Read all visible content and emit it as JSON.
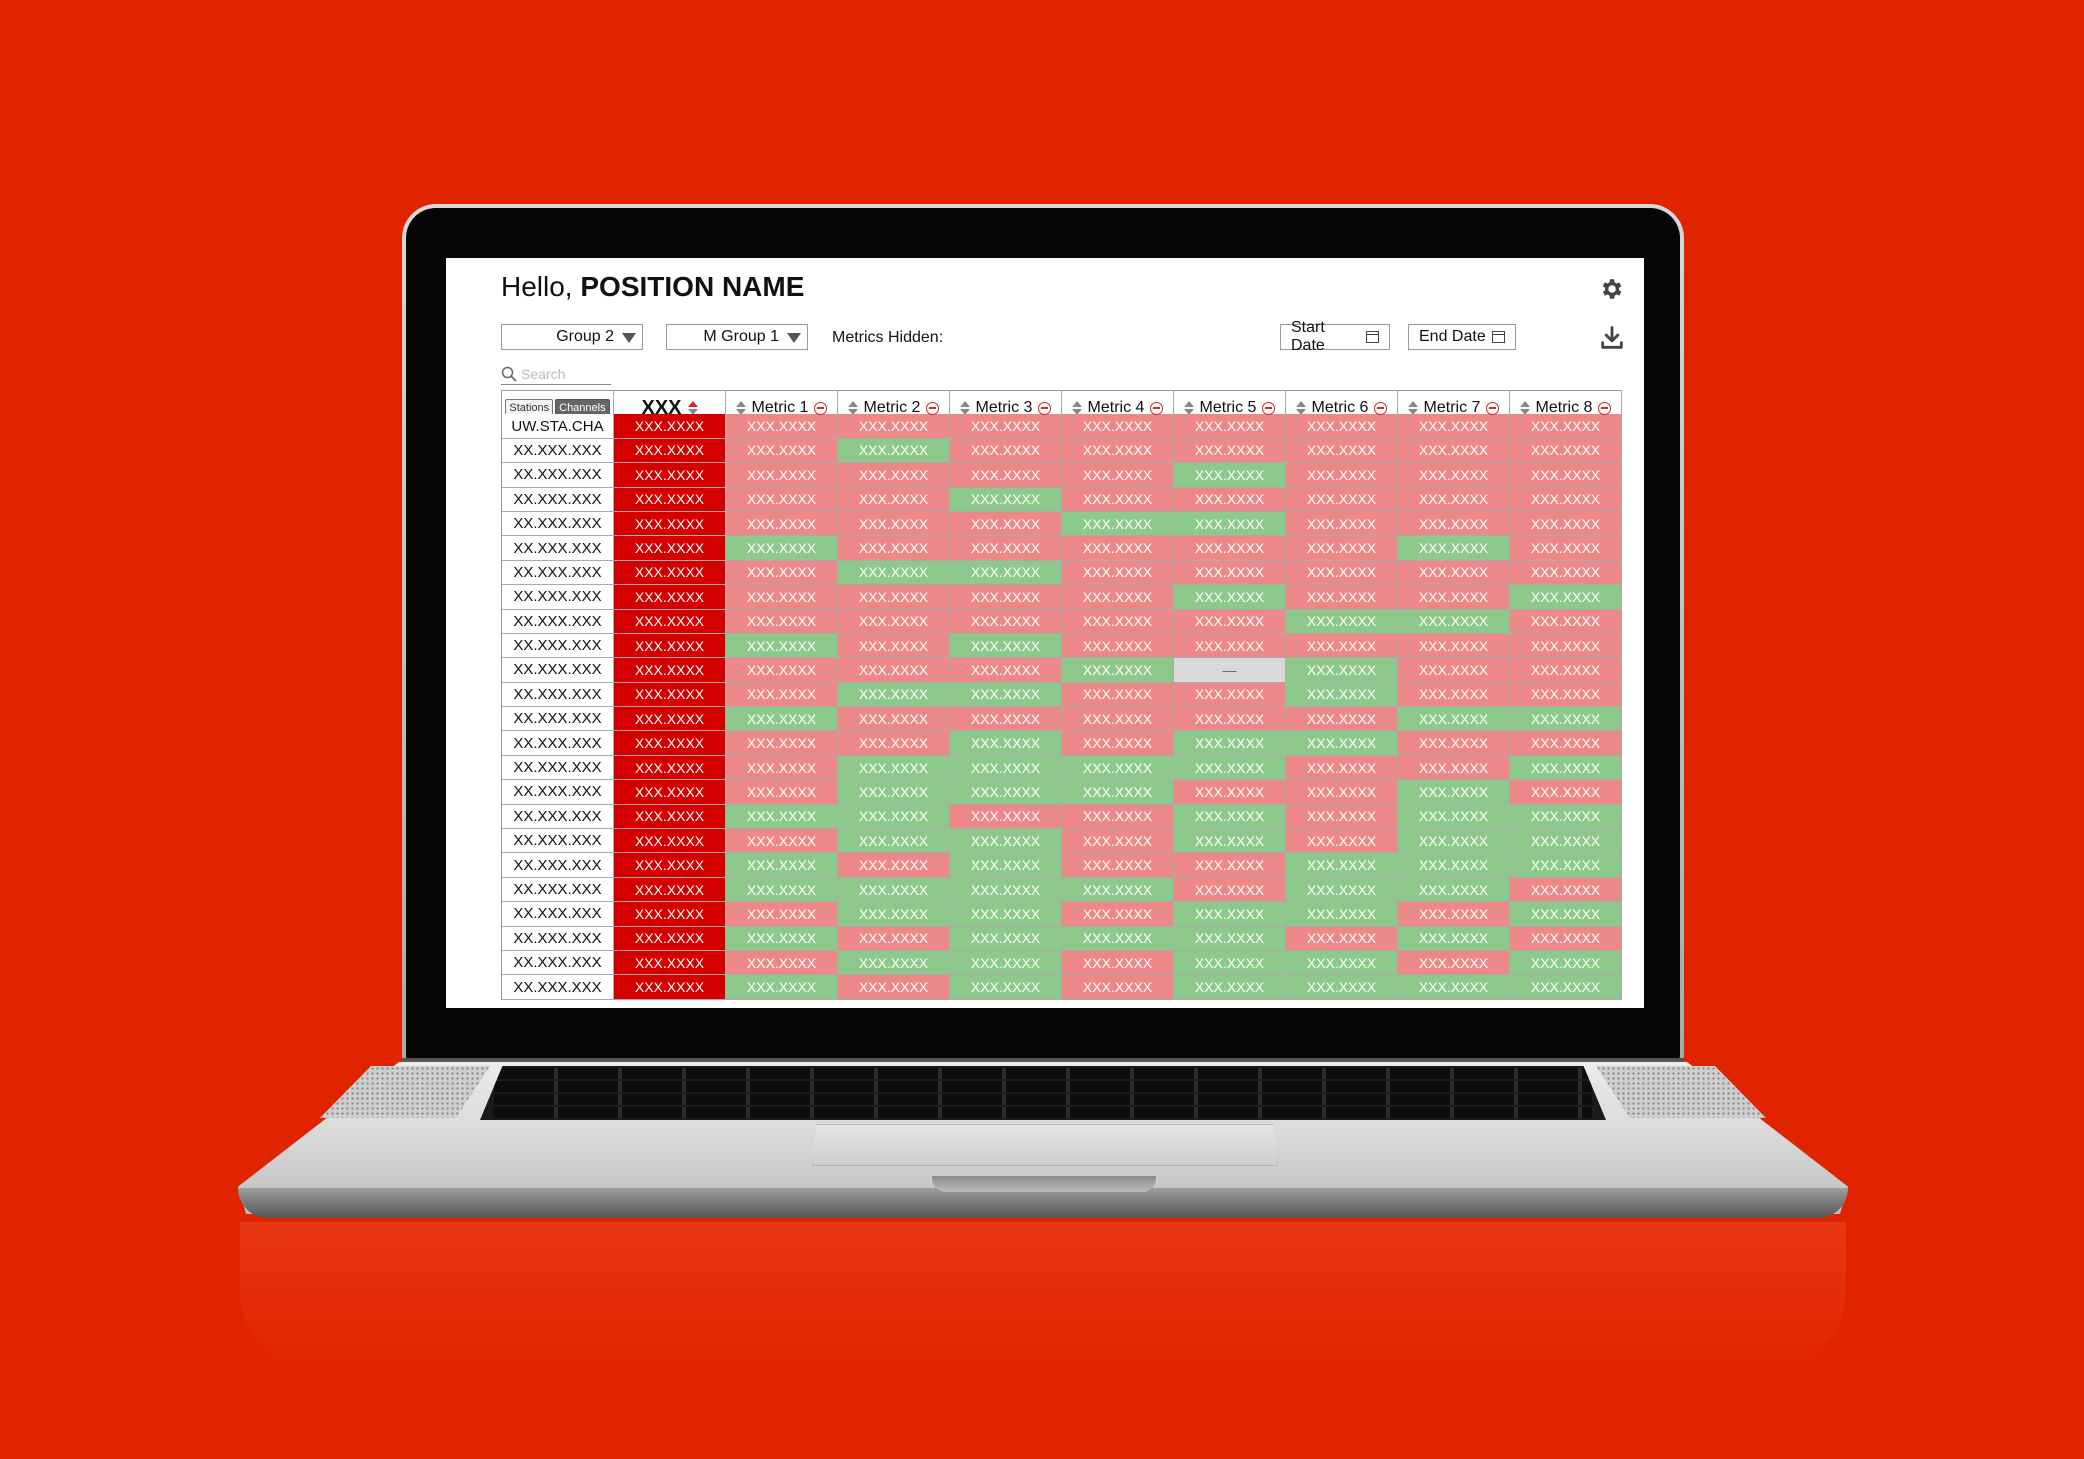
{
  "header": {
    "greeting_prefix": "Hello,",
    "position_name": "POSITION NAME"
  },
  "toolbar": {
    "group_dropdown": "Group 2",
    "metric_group_dropdown": "M Group 1",
    "metrics_hidden_label": "Metrics Hidden:",
    "start_date_label": "Start Date",
    "end_date_label": "End Date",
    "search_placeholder": "Search"
  },
  "table": {
    "toggle": [
      "Stations",
      "Channels"
    ],
    "primary_header": "XXX",
    "metric_headers": [
      "Metric 1",
      "Metric 2",
      "Metric 3",
      "Metric 4",
      "Metric 5",
      "Metric 6",
      "Metric 7",
      "Metric 8"
    ],
    "cell_text": "XXX.XXXX",
    "na_text": "—",
    "rows": [
      {
        "name": "UW.STA.CHA",
        "status": "bbbbbbbb"
      },
      {
        "name": "XX.XXX.XXX",
        "status": "bgbbbbbb"
      },
      {
        "name": "XX.XXX.XXX",
        "status": "bbbbgbbb"
      },
      {
        "name": "XX.XXX.XXX",
        "status": "bbgbbbbb"
      },
      {
        "name": "XX.XXX.XXX",
        "status": "bbbggbbb"
      },
      {
        "name": "XX.XXX.XXX",
        "status": "gbbbbbgb"
      },
      {
        "name": "XX.XXX.XXX",
        "status": "bggbbbbb"
      },
      {
        "name": "XX.XXX.XXX",
        "status": "bbbbgbbg"
      },
      {
        "name": "XX.XXX.XXX",
        "status": "bbbbbggb"
      },
      {
        "name": "XX.XXX.XXX",
        "status": "gbgbbbbb"
      },
      {
        "name": "XX.XXX.XXX",
        "status": "bbbgngbb"
      },
      {
        "name": "XX.XXX.XXX",
        "status": "bggbbgbb"
      },
      {
        "name": "XX.XXX.XXX",
        "status": "gbbbbbgg"
      },
      {
        "name": "XX.XXX.XXX",
        "status": "bbgbggbb"
      },
      {
        "name": "XX.XXX.XXX",
        "status": "bggggbbg"
      },
      {
        "name": "XX.XXX.XXX",
        "status": "bgggbbgb"
      },
      {
        "name": "XX.XXX.XXX",
        "status": "ggbbgbgg"
      },
      {
        "name": "XX.XXX.XXX",
        "status": "bggbgbgg"
      },
      {
        "name": "XX.XXX.XXX",
        "status": "gbgbbggg"
      },
      {
        "name": "XX.XXX.XXX",
        "status": "ggggbggb"
      },
      {
        "name": "XX.XXX.XXX",
        "status": "bggbggbg"
      },
      {
        "name": "XX.XXX.XXX",
        "status": "gbgggbgb"
      },
      {
        "name": "XX.XXX.XXX",
        "status": "bggbggbg"
      },
      {
        "name": "XX.XXX.XXX",
        "status": "gbgbgggg"
      }
    ]
  },
  "colors": {
    "background": "#e02400",
    "primary_column": "#d40000",
    "bad_cell": "#ec8888",
    "good_cell": "#8cc98a",
    "na_cell": "#d9d9d9"
  },
  "icons": {
    "settings": "gear-icon",
    "download": "download-icon",
    "search": "search-icon",
    "calendar": "calendar-icon",
    "sort": "sort-arrows-icon",
    "hide_metric": "minus-circle-icon"
  }
}
